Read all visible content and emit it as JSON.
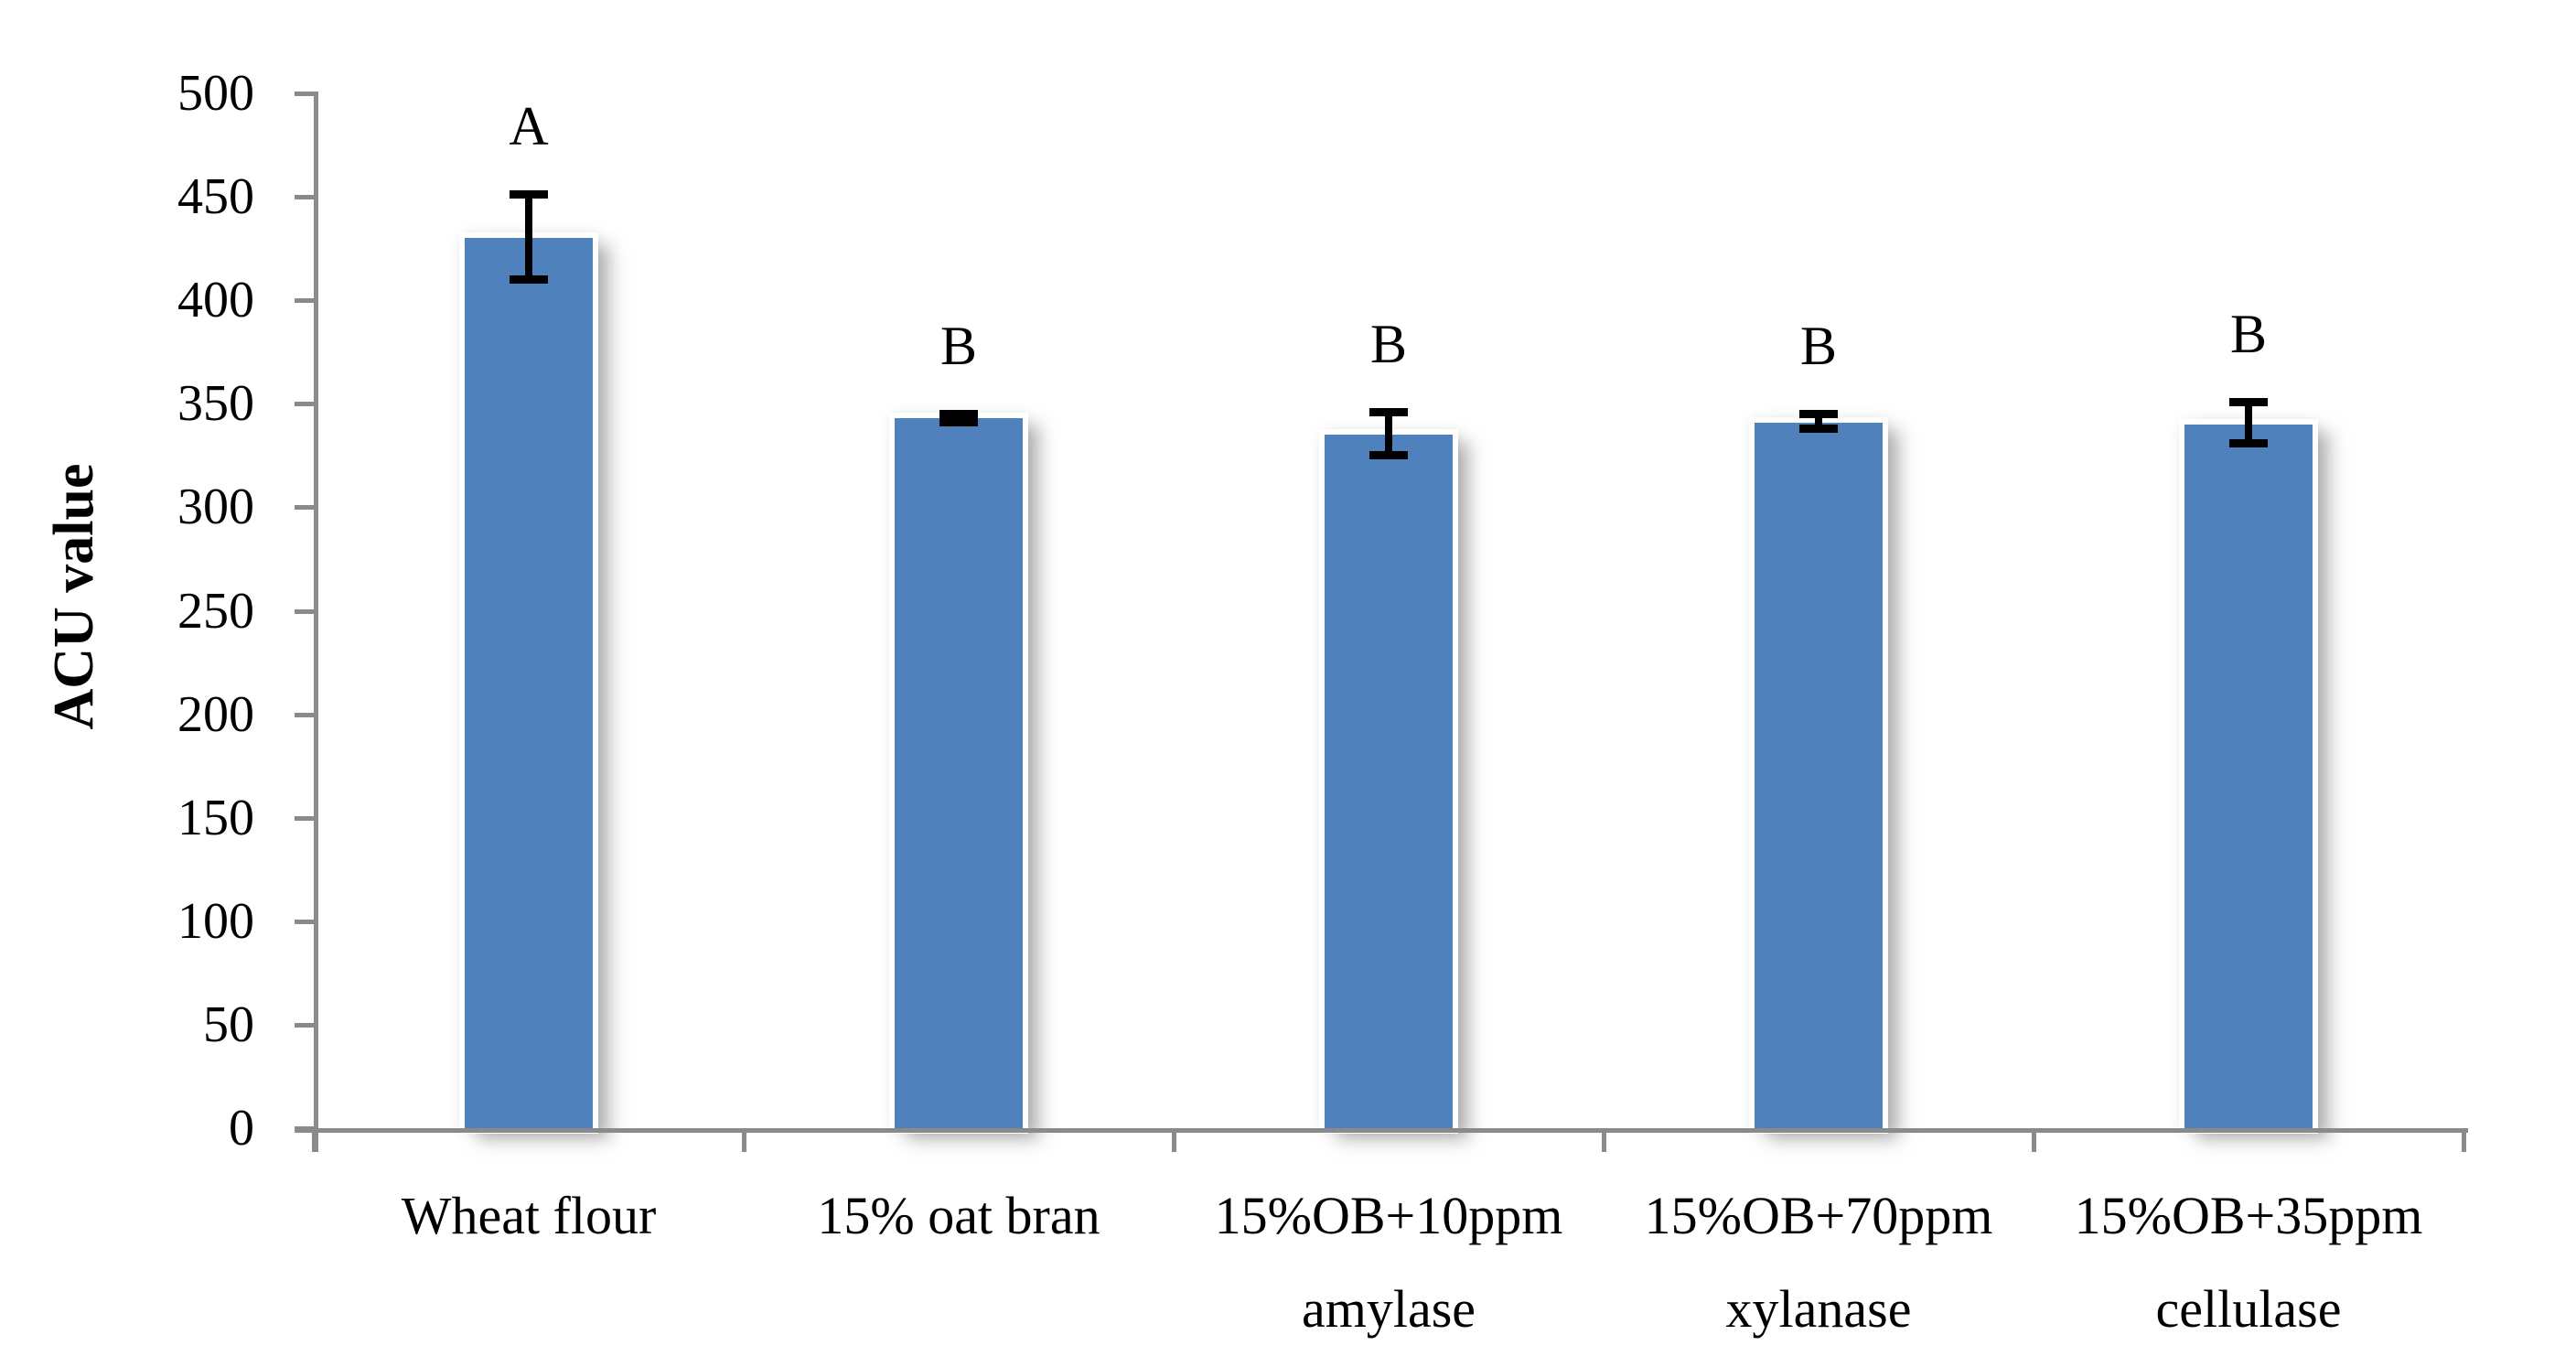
{
  "chart_data": {
    "type": "bar",
    "title": "",
    "ylabel": "ACU value",
    "xlabel": "",
    "ylim": [
      0,
      500
    ],
    "yticks": [
      0,
      50,
      100,
      150,
      200,
      250,
      300,
      350,
      400,
      450,
      500
    ],
    "grid": false,
    "legend": "none",
    "categories": [
      "Wheat flour",
      "15% oat bran",
      "15%OB+10ppm\namylase",
      "15%OB+70ppm\nxylanase",
      "15%OB+35ppm\ncellulase"
    ],
    "values": [
      430,
      343,
      335,
      341,
      340
    ],
    "error_plus": [
      23,
      4,
      13,
      6,
      13
    ],
    "error_minus": [
      22,
      4,
      12,
      5,
      11
    ],
    "sig_letters": [
      "A",
      "B",
      "B",
      "B",
      "B"
    ],
    "bar_color": "#4F81BD",
    "axis_color": "#8a8a8a",
    "error_color": "#000000",
    "text_color": "#000000"
  }
}
